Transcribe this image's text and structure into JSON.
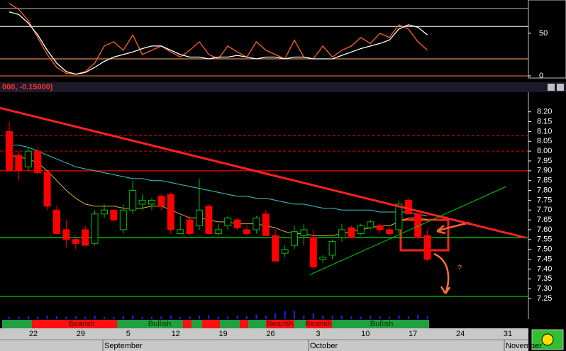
{
  "header": "000, -0.15000)",
  "chart_data": [
    {
      "type": "line",
      "ylim": [
        -2.5,
        89
      ],
      "yticks": [
        0,
        50
      ],
      "levels": [
        {
          "value": 79,
          "color": "#c0c0c0"
        },
        {
          "value": 58,
          "color": "#ffffe0"
        },
        {
          "value": 20,
          "color": "#ffb070"
        },
        {
          "value": 0,
          "color": "#ff8040"
        }
      ],
      "series": [
        {
          "color": "#ff6020",
          "values": [
            85,
            78,
            65,
            45,
            25,
            10,
            3,
            2,
            5,
            15,
            35,
            40,
            30,
            48,
            25,
            30,
            35,
            28,
            22,
            30,
            40,
            25,
            20,
            35,
            28,
            22,
            40,
            30,
            25,
            20,
            42,
            22,
            20,
            35,
            22,
            30,
            35,
            45,
            38,
            50,
            45,
            60,
            55,
            40,
            30
          ]
        },
        {
          "color": "#ffffff",
          "values": [
            75,
            72,
            62,
            48,
            30,
            15,
            5,
            2,
            4,
            10,
            17,
            22,
            25,
            28,
            32,
            35,
            35,
            30,
            25,
            22,
            22,
            20,
            22,
            22,
            24,
            22,
            20,
            22,
            22,
            20,
            22,
            22,
            20,
            20,
            20,
            24,
            28,
            32,
            35,
            38,
            42,
            55,
            60,
            57,
            48
          ]
        }
      ]
    },
    {
      "type": "candlestick",
      "ylim": [
        7.21,
        8.3
      ],
      "yticks": [
        {
          "value": 8.2,
          "label": "8.20"
        },
        8.15,
        {
          "value": 8.1,
          "label": "8.10"
        },
        8.05,
        {
          "value": 8.0,
          "label": "8.00"
        },
        7.95,
        {
          "value": 7.9,
          "label": "7.90"
        },
        7.85,
        {
          "value": 7.8,
          "label": "7.80"
        },
        7.75,
        {
          "value": 7.7,
          "label": "7.70"
        },
        7.65,
        {
          "value": 7.6,
          "label": "7.60"
        },
        7.55,
        {
          "value": 7.5,
          "label": "7.50"
        },
        7.45,
        {
          "value": 7.4,
          "label": "7.40"
        },
        7.35,
        {
          "value": 7.3,
          "label": "7.30"
        },
        7.25
      ],
      "up_color": "#00c000",
      "down_color": "#ff0000",
      "open": [
        8.1,
        7.98,
        7.92,
        8.0,
        7.89,
        7.7,
        7.6,
        7.55,
        7.6,
        7.53,
        7.68,
        7.7,
        7.6,
        7.7,
        7.73,
        7.73,
        7.77,
        7.78,
        7.58,
        7.65,
        7.62,
        7.72,
        7.58,
        7.62,
        7.65,
        7.6,
        7.6,
        7.68,
        7.57,
        7.48,
        7.52,
        7.57,
        7.56,
        7.45,
        7.47,
        7.56,
        7.61,
        7.58,
        7.61,
        7.62,
        7.6,
        7.6,
        7.75,
        7.68,
        7.57
      ],
      "high": [
        8.15,
        8.0,
        8.02,
        8.02,
        7.9,
        7.72,
        7.65,
        7.57,
        7.62,
        7.7,
        7.73,
        7.7,
        7.73,
        7.85,
        7.78,
        7.76,
        7.78,
        7.79,
        7.67,
        7.67,
        7.86,
        7.73,
        7.63,
        7.67,
        7.66,
        7.62,
        7.67,
        7.7,
        7.6,
        7.52,
        7.62,
        7.63,
        7.6,
        7.47,
        7.55,
        7.63,
        7.62,
        7.63,
        7.65,
        7.63,
        7.61,
        7.75,
        7.76,
        7.69,
        7.6
      ],
      "low": [
        7.9,
        7.85,
        7.9,
        7.88,
        7.7,
        7.58,
        7.51,
        7.5,
        7.52,
        7.52,
        7.66,
        7.64,
        7.58,
        7.68,
        7.7,
        7.7,
        7.7,
        7.58,
        7.58,
        7.57,
        7.6,
        7.58,
        7.57,
        7.6,
        7.6,
        7.57,
        7.58,
        7.57,
        7.44,
        7.46,
        7.5,
        7.52,
        7.4,
        7.43,
        7.45,
        7.54,
        7.56,
        7.57,
        7.6,
        7.58,
        7.57,
        7.58,
        7.68,
        7.55,
        7.44
      ],
      "close": [
        7.9,
        7.9,
        8.0,
        7.89,
        7.72,
        7.58,
        7.55,
        7.53,
        7.52,
        7.68,
        7.7,
        7.65,
        7.7,
        7.8,
        7.75,
        7.75,
        7.72,
        7.6,
        7.6,
        7.58,
        7.7,
        7.58,
        7.6,
        7.66,
        7.61,
        7.58,
        7.66,
        7.57,
        7.44,
        7.5,
        7.59,
        7.6,
        7.41,
        7.46,
        7.54,
        7.6,
        7.56,
        7.62,
        7.64,
        7.6,
        7.58,
        7.73,
        7.68,
        7.56,
        7.45
      ],
      "lines": [
        {
          "color": "#40c8c8",
          "values": [
            8.03,
            8.03,
            8.02,
            8.0,
            7.98,
            7.96,
            7.94,
            7.92,
            7.91,
            7.9,
            7.89,
            7.88,
            7.87,
            7.86,
            7.86,
            7.85,
            7.85,
            7.84,
            7.83,
            7.82,
            7.81,
            7.8,
            7.79,
            7.78,
            7.77,
            7.77,
            7.76,
            7.76,
            7.75,
            7.74,
            7.73,
            7.73,
            7.72,
            7.71,
            7.71,
            7.7,
            7.7,
            7.7,
            7.7,
            7.69,
            7.69,
            7.69,
            7.69,
            7.68,
            7.67
          ]
        },
        {
          "color": "#d8b040",
          "values": [
            7.98,
            7.97,
            7.96,
            7.94,
            7.9,
            7.85,
            7.8,
            7.76,
            7.73,
            7.72,
            7.72,
            7.72,
            7.71,
            7.71,
            7.71,
            7.72,
            7.72,
            7.7,
            7.68,
            7.66,
            7.66,
            7.65,
            7.64,
            7.64,
            7.63,
            7.63,
            7.63,
            7.62,
            7.61,
            7.59,
            7.58,
            7.58,
            7.57,
            7.57,
            7.57,
            7.58,
            7.59,
            7.6,
            7.61,
            7.62,
            7.62,
            7.64,
            7.66,
            7.66,
            7.65
          ]
        }
      ],
      "levels": [
        {
          "value": 8.08,
          "color": "#c00000",
          "dash": true
        },
        {
          "value": 8.0,
          "color": "#c00000",
          "dash": true
        },
        {
          "value": 7.9,
          "color": "#e00000",
          "dash": false
        },
        {
          "value": 7.56,
          "color": "#00e000",
          "dash": false
        },
        {
          "value": 7.26,
          "color": "#00c000",
          "dash": false
        }
      ],
      "trendlines": [
        {
          "color": "#ff2020",
          "width": 3,
          "points": [
            [
              -1,
              8.22
            ],
            [
              54.3,
              7.56
            ]
          ]
        },
        {
          "color": "#00d000",
          "width": 1,
          "points": [
            [
              31.6,
              7.37
            ],
            [
              52.3,
              7.82
            ]
          ]
        }
      ],
      "x_labels": [
        "22",
        "29",
        "5",
        "12",
        "19",
        "26",
        "3",
        "10",
        "17",
        "24",
        "31"
      ],
      "month_labels": [
        "September",
        "October",
        "November"
      ],
      "signal_labels": [
        "Bearish",
        "Bullish",
        "Bearish",
        "Bearish",
        "Bullish"
      ],
      "annotation": "?"
    },
    {
      "type": "bar",
      "color": "#2020ff",
      "ylim": [
        0,
        4
      ],
      "values": [
        1,
        1,
        1.2,
        1,
        1.5,
        1.2,
        1,
        1.2,
        1,
        1.5,
        1,
        1,
        1.2,
        1.5,
        1,
        1,
        1.2,
        1.5,
        1,
        1.2,
        1.5,
        1.8,
        1,
        1.2,
        1.5,
        1.2,
        2,
        1.5,
        2.5,
        3.5,
        3.5,
        1.5,
        2.5,
        1.5,
        1.2,
        1.5,
        1.2,
        1,
        1.5,
        1.2,
        1,
        1.5,
        1.2,
        1.8,
        1.2
      ]
    }
  ]
}
